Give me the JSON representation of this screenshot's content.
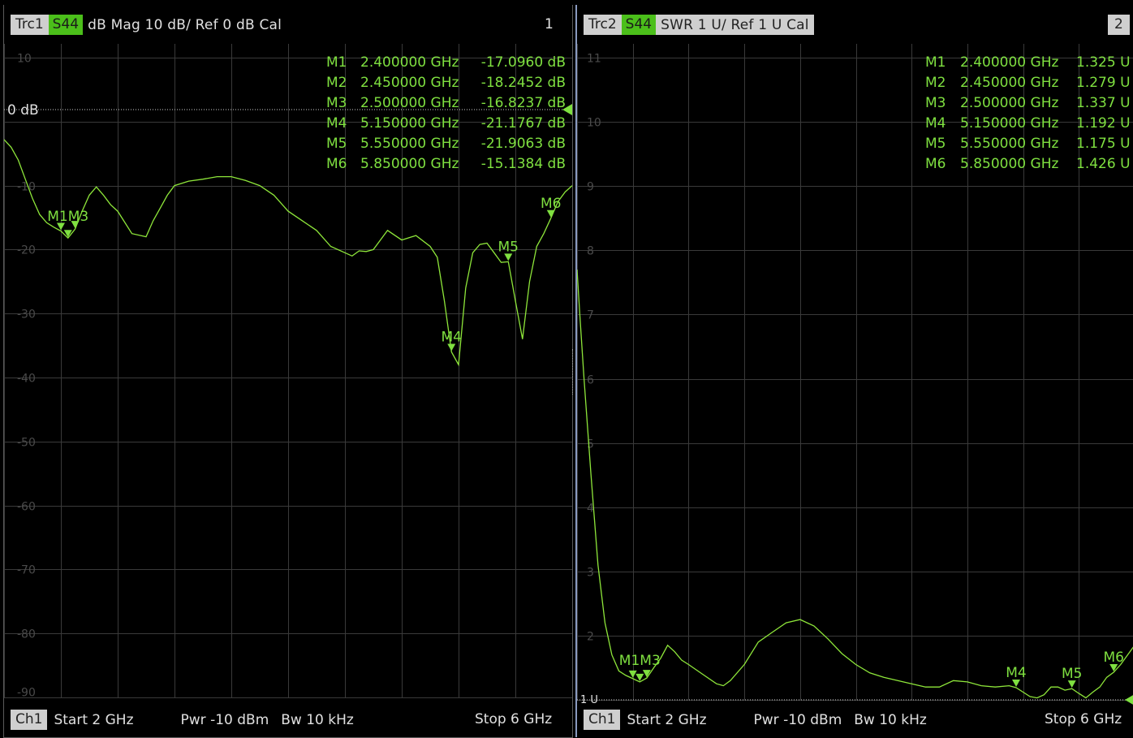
{
  "trace1": {
    "trace_label": "Trc1",
    "param_label": "S44",
    "format_text": "dB Mag  10 dB/ Ref 0 dB  Cal",
    "window_number": "1",
    "ref_line_label": "0 dB",
    "y_tick_labels": [
      "10",
      "0",
      "-10",
      "-20",
      "-30",
      "-40",
      "-50",
      "-60",
      "-70",
      "-80",
      "-90"
    ],
    "markers": [
      {
        "name": "M1",
        "freq": "2.400000 GHz",
        "value": "-17.0960 dB"
      },
      {
        "name": "M2",
        "freq": "2.450000 GHz",
        "value": "-18.2452 dB"
      },
      {
        "name": "M3",
        "freq": "2.500000 GHz",
        "value": "-16.8237 dB"
      },
      {
        "name": "M4",
        "freq": "5.150000 GHz",
        "value": "-21.1767 dB"
      },
      {
        "name": "M5",
        "freq": "5.550000 GHz",
        "value": "-21.9063 dB"
      },
      {
        "name": "M6",
        "freq": "5.850000 GHz",
        "value": "-15.1384 dB"
      }
    ],
    "marker_flag_labels": {
      "m1m2m3": "M1M3",
      "m4": "M4",
      "m5": "M5",
      "m6": "M6"
    }
  },
  "trace2": {
    "trace_label": "Trc2",
    "param_label": "S44",
    "format_text": "SWR  1 U/ Ref 1 U  Cal",
    "window_number": "2",
    "ref_line_label": "1 U",
    "y_tick_labels": [
      "11",
      "10",
      "9",
      "8",
      "7",
      "6",
      "5",
      "4",
      "3",
      "2",
      "1"
    ],
    "markers": [
      {
        "name": "M1",
        "freq": "2.400000 GHz",
        "value": "1.325 U"
      },
      {
        "name": "M2",
        "freq": "2.450000 GHz",
        "value": "1.279 U"
      },
      {
        "name": "M3",
        "freq": "2.500000 GHz",
        "value": "1.337 U"
      },
      {
        "name": "M4",
        "freq": "5.150000 GHz",
        "value": "1.192 U"
      },
      {
        "name": "M5",
        "freq": "5.550000 GHz",
        "value": "1.175 U"
      },
      {
        "name": "M6",
        "freq": "5.850000 GHz",
        "value": "1.426 U"
      }
    ],
    "marker_flag_labels": {
      "m1m2m3": "M1M3",
      "m4": "M4",
      "m5": "M5",
      "m6": "M6"
    }
  },
  "channel": {
    "label": "Ch1",
    "start": "Start  2 GHz",
    "power": "Pwr  -10 dBm",
    "bandwidth": "Bw  10 kHz",
    "stop": "Stop  6 GHz"
  },
  "colors": {
    "trace": "#8ee63a",
    "grid": "#3a3a3a",
    "tick_text": "#4a4a4a",
    "marker_text": "#7fe040",
    "tag_green": "#4bbf1a"
  },
  "chart_data": [
    {
      "type": "line",
      "title": "",
      "xlabel": "",
      "ylabel": "",
      "xlim": [
        2,
        6
      ],
      "ylim": [
        -90,
        10
      ],
      "x_unit": "GHz",
      "y_unit": "dB",
      "grid": true,
      "series": [
        {
          "name": "S44",
          "x": [
            2.0,
            2.05,
            2.1,
            2.15,
            2.2,
            2.25,
            2.3,
            2.35,
            2.4,
            2.45,
            2.5,
            2.55,
            2.6,
            2.65,
            2.7,
            2.75,
            2.8,
            2.9,
            3.0,
            3.05,
            3.1,
            3.15,
            3.2,
            3.3,
            3.4,
            3.5,
            3.6,
            3.7,
            3.8,
            3.9,
            4.0,
            4.1,
            4.2,
            4.3,
            4.4,
            4.45,
            4.5,
            4.55,
            4.6,
            4.7,
            4.8,
            4.9,
            5.0,
            5.05,
            5.1,
            5.15,
            5.2,
            5.25,
            5.3,
            5.35,
            5.4,
            5.45,
            5.5,
            5.55,
            5.6,
            5.65,
            5.7,
            5.75,
            5.8,
            5.85,
            5.9,
            5.95,
            6.0
          ],
          "y": [
            -2.8,
            -4,
            -6,
            -9,
            -12,
            -14.5,
            -15.8,
            -16.5,
            -17.1,
            -18.2,
            -16.8,
            -14,
            -11.5,
            -10.2,
            -11.5,
            -13,
            -14,
            -17.5,
            -18,
            -15.5,
            -13.5,
            -11.5,
            -10,
            -9.3,
            -9,
            -8.6,
            -8.6,
            -9.2,
            -10,
            -11.5,
            -14,
            -15.5,
            -17,
            -19.5,
            -20.5,
            -21,
            -20.2,
            -20.3,
            -20,
            -17,
            -18.5,
            -17.8,
            -19.5,
            -21.2,
            -28,
            -36,
            -38,
            -26,
            -20.5,
            -19.2,
            -19,
            -20.5,
            -22,
            -21.9,
            -28,
            -34,
            -25,
            -19.5,
            -17.5,
            -15.1,
            -12.5,
            -11,
            -10
          ]
        }
      ]
    },
    {
      "type": "line",
      "title": "",
      "xlabel": "",
      "ylabel": "",
      "xlim": [
        2,
        6
      ],
      "ylim": [
        1,
        11
      ],
      "x_unit": "GHz",
      "y_unit": "U",
      "grid": true,
      "series": [
        {
          "name": "S44",
          "x": [
            2.0,
            2.02,
            2.05,
            2.1,
            2.15,
            2.2,
            2.25,
            2.3,
            2.35,
            2.4,
            2.45,
            2.5,
            2.55,
            2.6,
            2.65,
            2.7,
            2.75,
            2.8,
            2.9,
            3.0,
            3.05,
            3.1,
            3.2,
            3.3,
            3.4,
            3.5,
            3.6,
            3.7,
            3.8,
            3.9,
            4.0,
            4.1,
            4.2,
            4.3,
            4.4,
            4.5,
            4.6,
            4.7,
            4.8,
            4.9,
            5.0,
            5.1,
            5.15,
            5.2,
            5.25,
            5.3,
            5.35,
            5.4,
            5.45,
            5.5,
            5.55,
            5.6,
            5.65,
            5.7,
            5.75,
            5.8,
            5.85,
            5.9,
            5.95,
            6.0
          ],
          "y": [
            7.7,
            7.0,
            6.0,
            4.5,
            3.1,
            2.2,
            1.7,
            1.45,
            1.38,
            1.33,
            1.28,
            1.34,
            1.5,
            1.65,
            1.85,
            1.75,
            1.62,
            1.55,
            1.4,
            1.25,
            1.22,
            1.3,
            1.55,
            1.9,
            2.05,
            2.2,
            2.25,
            2.15,
            1.95,
            1.72,
            1.55,
            1.42,
            1.35,
            1.3,
            1.25,
            1.2,
            1.2,
            1.3,
            1.28,
            1.22,
            1.2,
            1.22,
            1.19,
            1.12,
            1.05,
            1.03,
            1.08,
            1.2,
            1.2,
            1.15,
            1.175,
            1.1,
            1.03,
            1.12,
            1.2,
            1.35,
            1.43,
            1.55,
            1.7,
            1.85
          ]
        }
      ]
    }
  ]
}
